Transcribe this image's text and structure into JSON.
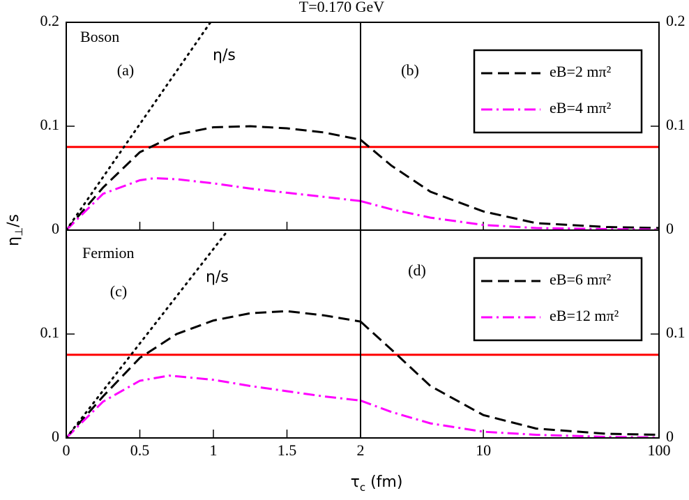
{
  "figure": {
    "title": "T=0.170 GeV",
    "x_label": {
      "main": "τ",
      "sub": "c",
      "rest": " (fm)"
    },
    "y_label": {
      "main": "η",
      "sub": "⊥",
      "rest": "/s"
    }
  },
  "chart_data": [
    {
      "type": "line",
      "annotation": "Boson",
      "panel_label": "(a)",
      "xscale": "linear",
      "xlim": [
        0,
        2
      ],
      "xticks": [
        0,
        0.5,
        1,
        1.5,
        2
      ],
      "xtick_labels": false,
      "ylim": [
        0,
        0.2
      ],
      "yticks": [
        0,
        0.1,
        0.2
      ],
      "ytick_side": "left",
      "reference_line": {
        "value": 0.08,
        "color": "#ff0000"
      },
      "series": [
        {
          "color": "#000000",
          "dash": "dashed",
          "x": [
            0,
            0.25,
            0.5,
            0.75,
            1,
            1.25,
            1.5,
            1.75,
            2
          ],
          "values": [
            0,
            0.041,
            0.075,
            0.092,
            0.099,
            0.1,
            0.098,
            0.094,
            0.087
          ]
        },
        {
          "color": "#ff00ff",
          "dash": "dashdot",
          "x": [
            0,
            0.25,
            0.5,
            0.6,
            0.75,
            1,
            1.25,
            1.5,
            1.75,
            2
          ],
          "values": [
            0,
            0.035,
            0.048,
            0.05,
            0.049,
            0.045,
            0.04,
            0.036,
            0.032,
            0.028
          ]
        },
        {
          "name": "η/s",
          "color": "#000000",
          "dash": "dotted",
          "x": [
            0,
            0.98
          ],
          "values": [
            0,
            0.2
          ]
        }
      ]
    },
    {
      "type": "line",
      "panel_label": "(b)",
      "xscale": "log",
      "xlim": [
        2,
        100
      ],
      "xticks": [
        10,
        100
      ],
      "xtick_labels": false,
      "ylim": [
        0,
        0.2
      ],
      "yticks": [
        0,
        0.1,
        0.2
      ],
      "ytick_side": "right",
      "reference_line": {
        "value": 0.08,
        "color": "#ff0000"
      },
      "legend": "upper right",
      "series": [
        {
          "name": "eB=2 mπ²",
          "color": "#000000",
          "dash": "dashed",
          "x": [
            2,
            3,
            5,
            10,
            20,
            50,
            100
          ],
          "values": [
            0.087,
            0.062,
            0.037,
            0.018,
            0.0067,
            0.003,
            0.002
          ]
        },
        {
          "name": "eB=4 mπ²",
          "color": "#ff00ff",
          "dash": "dashdot",
          "x": [
            2,
            3,
            5,
            10,
            20,
            50,
            100
          ],
          "values": [
            0.028,
            0.02,
            0.012,
            0.005,
            0.002,
            0.001,
            0.0005
          ]
        }
      ]
    },
    {
      "type": "line",
      "annotation": "Fermion",
      "panel_label": "(c)",
      "xscale": "linear",
      "xlim": [
        0,
        2
      ],
      "xticks": [
        0,
        0.5,
        1,
        1.5,
        2
      ],
      "xtick_labels": true,
      "ylim": [
        0,
        0.2
      ],
      "yticks": [
        0,
        0.1
      ],
      "ytick_side": "left",
      "reference_line": {
        "value": 0.08,
        "color": "#ff0000"
      },
      "series": [
        {
          "color": "#000000",
          "dash": "dashed",
          "x": [
            0,
            0.25,
            0.5,
            0.75,
            1,
            1.25,
            1.5,
            1.75,
            2
          ],
          "values": [
            0,
            0.04,
            0.077,
            0.1,
            0.113,
            0.12,
            0.122,
            0.118,
            0.112
          ]
        },
        {
          "color": "#ff00ff",
          "dash": "dashdot",
          "x": [
            0,
            0.25,
            0.5,
            0.7,
            1,
            1.25,
            1.5,
            1.75,
            2
          ],
          "values": [
            0,
            0.035,
            0.055,
            0.06,
            0.056,
            0.05,
            0.045,
            0.04,
            0.036
          ]
        },
        {
          "name": "η/s",
          "color": "#000000",
          "dash": "dotted",
          "x": [
            0,
            1.1
          ],
          "values": [
            0,
            0.2
          ]
        }
      ]
    },
    {
      "type": "line",
      "panel_label": "(d)",
      "xscale": "log",
      "xlim": [
        2,
        100
      ],
      "xticks": [
        10,
        100
      ],
      "xtick_labels": true,
      "ylim": [
        0,
        0.2
      ],
      "yticks": [
        0,
        0.1
      ],
      "ytick_side": "right",
      "reference_line": {
        "value": 0.08,
        "color": "#ff0000"
      },
      "legend": "upper right",
      "series": [
        {
          "name": "eB=6 mπ²",
          "color": "#000000",
          "dash": "dashed",
          "x": [
            2,
            3,
            5,
            10,
            20,
            50,
            100
          ],
          "values": [
            0.112,
            0.085,
            0.05,
            0.022,
            0.009,
            0.004,
            0.003
          ]
        },
        {
          "name": "eB=12 mπ²",
          "color": "#ff00ff",
          "dash": "dashdot",
          "x": [
            2,
            3,
            5,
            10,
            20,
            50,
            100
          ],
          "values": [
            0.036,
            0.025,
            0.014,
            0.006,
            0.003,
            0.001,
            0.0005
          ]
        }
      ]
    }
  ]
}
